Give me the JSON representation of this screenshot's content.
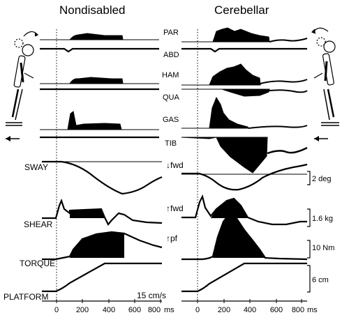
{
  "titles": {
    "left": "Nondisabled",
    "right": "Cerebellar"
  },
  "emg_labels": [
    "PAR",
    "ABD",
    "HAM",
    "QUA",
    "GAS",
    "TIB"
  ],
  "row_labels": {
    "sway": "SWAY",
    "shear": "SHEAR",
    "torque": "TORQUE",
    "platform": "PLATFORM"
  },
  "direction_labels": {
    "sway": "↓fwd",
    "shear": "↑fwd",
    "torque": "↑pf"
  },
  "scale_bars": {
    "sway": "2 deg",
    "shear": "1.6 kg",
    "torque": "10 Nm",
    "platform": "6 cm"
  },
  "velocity_label": "15 cm/s",
  "time_axis": {
    "ticks": [
      "0",
      "200",
      "400",
      "600",
      "800"
    ],
    "unit": "ms"
  },
  "colors": {
    "ink": "#000000",
    "background": "#ffffff"
  },
  "icons": [
    "forward-arrow-icon",
    "backward-arrow-icon",
    "nondisabled-figure-icon",
    "cerebellar-figure-icon"
  ]
}
